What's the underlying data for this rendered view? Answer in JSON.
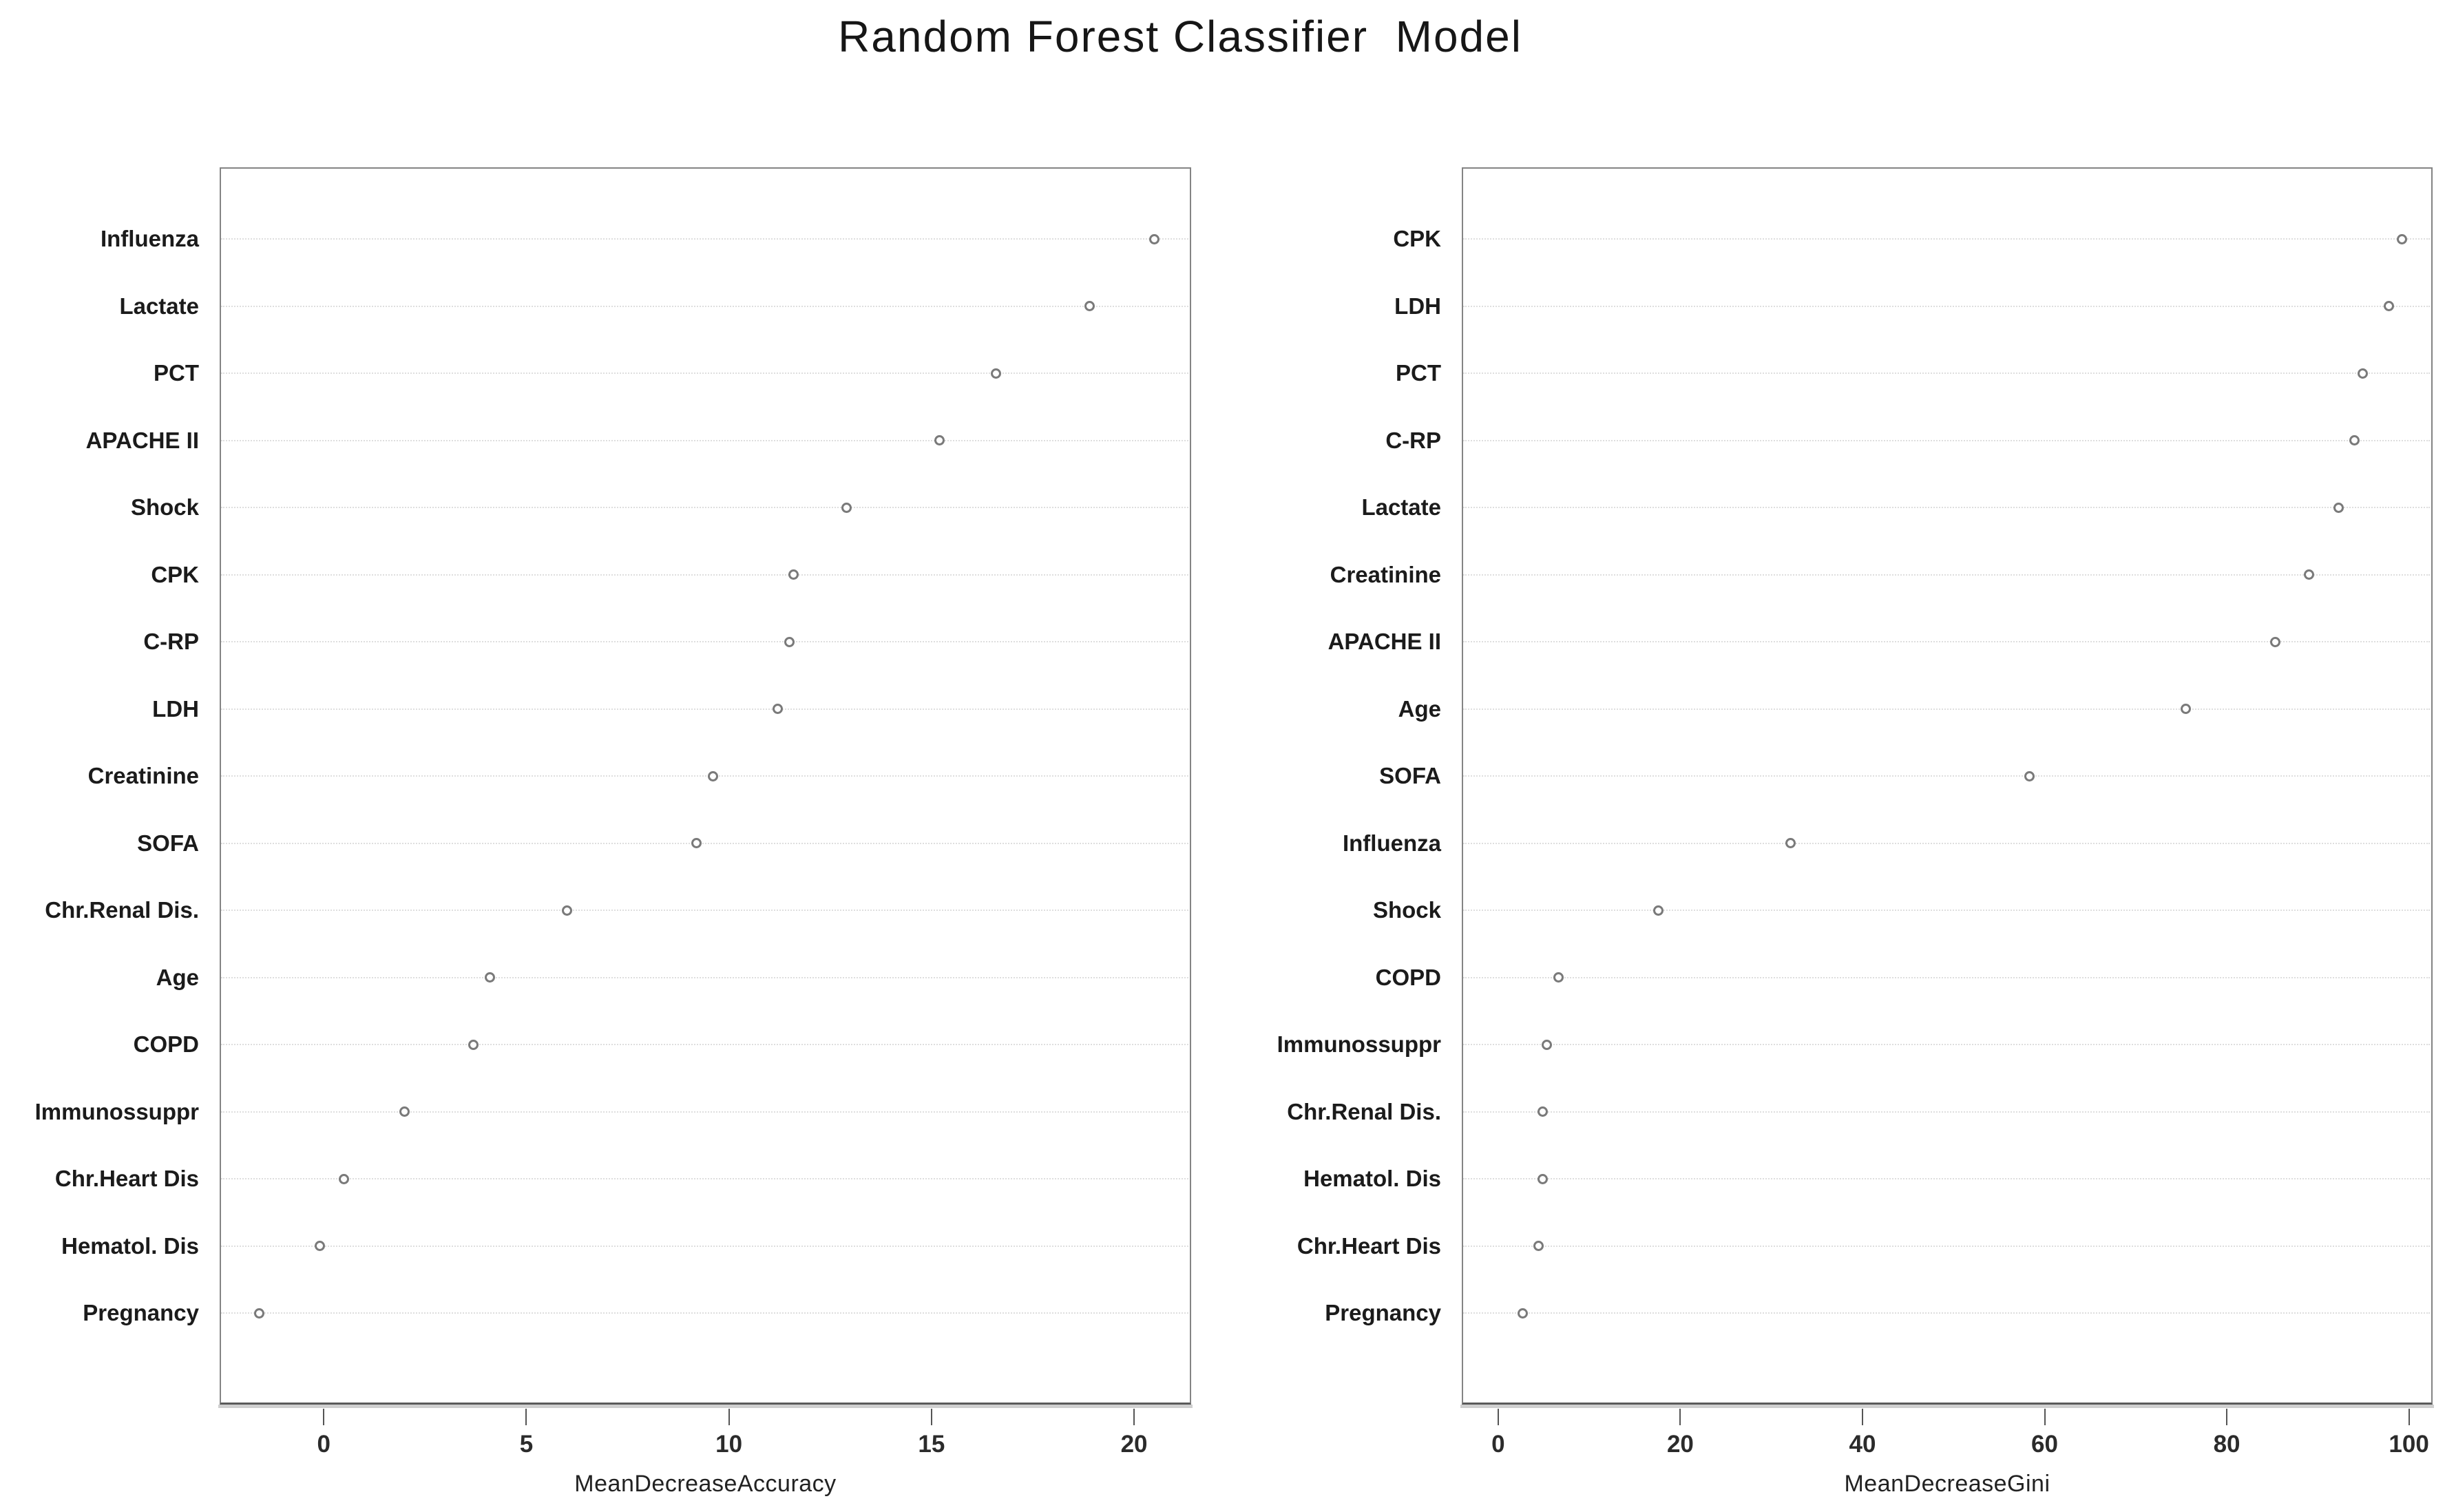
{
  "title": "Random Forest Classifier  Model",
  "chart_data": {
    "type": "scatter",
    "title": "Random Forest Classifier  Model",
    "marker": "open-circle",
    "grid": "dotted-horizontal",
    "legend": "none",
    "panels": [
      {
        "xlabel": "MeanDecreaseAccuracy",
        "xticks": [
          0,
          5,
          10,
          15,
          20
        ],
        "xlim": [
          -2.57,
          21.41
        ],
        "categories": [
          "Influenza",
          "Lactate",
          "PCT",
          "APACHE II",
          "Shock",
          "CPK",
          "C-RP",
          "LDH",
          "Creatinine",
          "SOFA",
          "Chr.Renal Dis.",
          "Age",
          "COPD",
          "Immunossuppr",
          "Chr.Heart Dis",
          "Hematol. Dis",
          "Pregnancy"
        ],
        "values": [
          20.5,
          18.9,
          16.6,
          15.2,
          12.9,
          11.6,
          11.5,
          11.2,
          9.6,
          9.2,
          6.0,
          4.1,
          3.7,
          2.0,
          0.5,
          -0.1,
          -1.6
        ]
      },
      {
        "xlabel": "MeanDecreaseGini",
        "xticks": [
          0,
          20,
          40,
          60,
          80,
          100
        ],
        "xlim": [
          -4.0,
          102.6
        ],
        "categories": [
          "CPK",
          "LDH",
          "PCT",
          "C-RP",
          "Lactate",
          "Creatinine",
          "APACHE II",
          "Age",
          "SOFA",
          "Influenza",
          "Shock",
          "COPD",
          "Immunossuppr",
          "Chr.Renal Dis.",
          "Hematol. Dis",
          "Chr.Heart Dis",
          "Pregnancy"
        ],
        "values": [
          99.2,
          97.8,
          94.9,
          94.0,
          92.3,
          89.0,
          85.3,
          75.5,
          58.3,
          32.1,
          17.6,
          6.6,
          5.3,
          4.9,
          4.9,
          4.4,
          2.7
        ]
      }
    ]
  },
  "layout_note": ""
}
